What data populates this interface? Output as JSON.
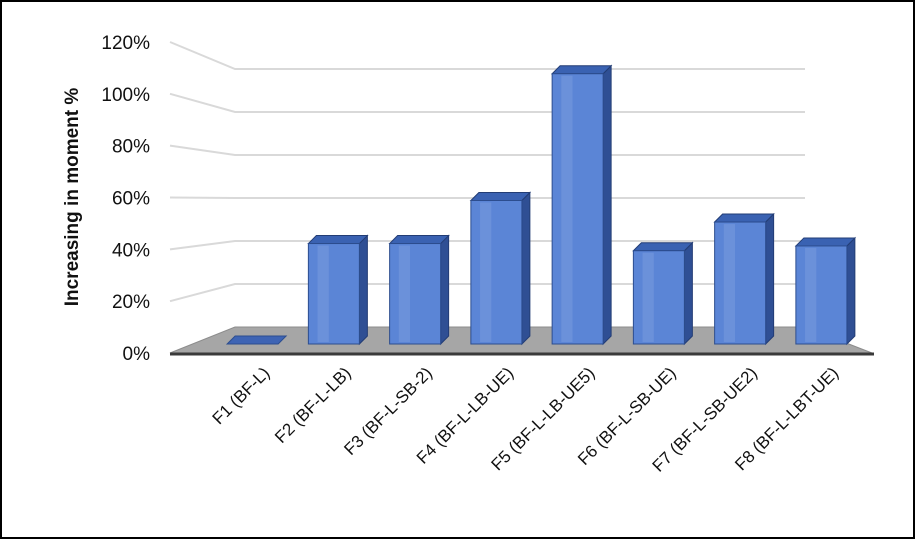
{
  "chart_data": {
    "type": "bar",
    "title": "",
    "xlabel": "",
    "ylabel": "Increasing in moment %",
    "ylim": [
      0,
      1.2
    ],
    "yticks": [
      0,
      0.2,
      0.4,
      0.6,
      0.8,
      1.0,
      1.2
    ],
    "ytick_labels": [
      "0%",
      "20%",
      "40%",
      "60%",
      "80%",
      "100%",
      "120%"
    ],
    "categories": [
      "F1 (BF-L)",
      "F2 (BF-L-LB)",
      "F3 (BF-L-SB-2)",
      "F4 (BF-L-LB-UE)",
      "F5 (BF-L-LB-UE5)",
      "F6 (BF-L-SB-UE)",
      "F7 (BF-L-SB-UE2)",
      "F8 (BF-L-LBT-UE)"
    ],
    "values": [
      0.0,
      0.42,
      0.42,
      0.6,
      1.13,
      0.39,
      0.51,
      0.41
    ],
    "grid": true,
    "legend": "none",
    "bar_color": "#5b85d6"
  }
}
